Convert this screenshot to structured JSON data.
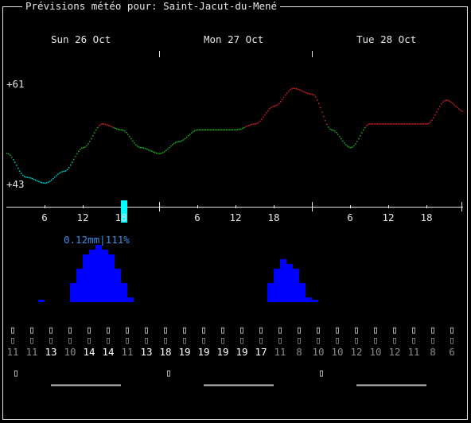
{
  "title": "Prévisions météo pour: Saint-Jacut-du-Mené",
  "days": [
    {
      "label": "Sun 26 Oct"
    },
    {
      "label": "Mon 27 Oct"
    },
    {
      "label": "Tue 28 Oct"
    }
  ],
  "temperature_axis": {
    "max_label": "+61",
    "min_label": "+43",
    "ylim": [
      43,
      61
    ]
  },
  "hour_ticks": [
    "6",
    "12",
    "18",
    "6",
    "12",
    "18",
    "6",
    "12",
    "18"
  ],
  "precipitation": {
    "label": "0.12mm|111%"
  },
  "colors": {
    "cold": "#00c8c8",
    "mild": "#22aa22",
    "warm": "#cc2222",
    "rain_bar": "#0000ff",
    "current_marker": "#00ffff",
    "rain_text": "#3b8fe6"
  },
  "chart_data": {
    "type": "line",
    "x_unit": "hour",
    "x": [
      0,
      3,
      6,
      9,
      12,
      15,
      18,
      21,
      24,
      27,
      30,
      33,
      36,
      39,
      42,
      45,
      48,
      51,
      54,
      57,
      60,
      63,
      66,
      69,
      72
    ],
    "series": [
      {
        "values": [
          49,
          45,
          44,
          46,
          50,
          54,
          53,
          50,
          49,
          51,
          53,
          53,
          53,
          54,
          57,
          60,
          59,
          53,
          50,
          54,
          54,
          54,
          54,
          58,
          56
        ]
      }
    ],
    "ylim": [
      43,
      61
    ]
  },
  "rain_chart": {
    "type": "bar",
    "x_unit": "hour",
    "x": [
      5,
      10,
      11,
      12,
      13,
      14,
      15,
      16,
      17,
      18,
      19,
      41,
      42,
      43,
      44,
      45,
      46,
      47,
      48
    ],
    "values": [
      0.005,
      0.04,
      0.07,
      0.1,
      0.11,
      0.12,
      0.11,
      0.1,
      0.07,
      0.04,
      0.01,
      0.04,
      0.07,
      0.09,
      0.08,
      0.07,
      0.04,
      0.01,
      0.005
    ]
  },
  "humidity_row": [
    "11",
    "11",
    "13",
    "10",
    "14",
    "14",
    "11",
    "13",
    "18",
    "19",
    "19",
    "19",
    "19",
    "17",
    "11",
    "8",
    "10",
    "10",
    "12",
    "10",
    "12",
    "11",
    "8",
    "6"
  ],
  "humidity_bright": [
    false,
    false,
    true,
    false,
    true,
    true,
    false,
    true,
    true,
    true,
    true,
    true,
    true,
    true,
    false,
    false,
    false,
    false,
    false,
    false,
    false,
    false,
    false,
    false
  ],
  "icon_row_glyph": "▯",
  "moon_glyph": "▯"
}
